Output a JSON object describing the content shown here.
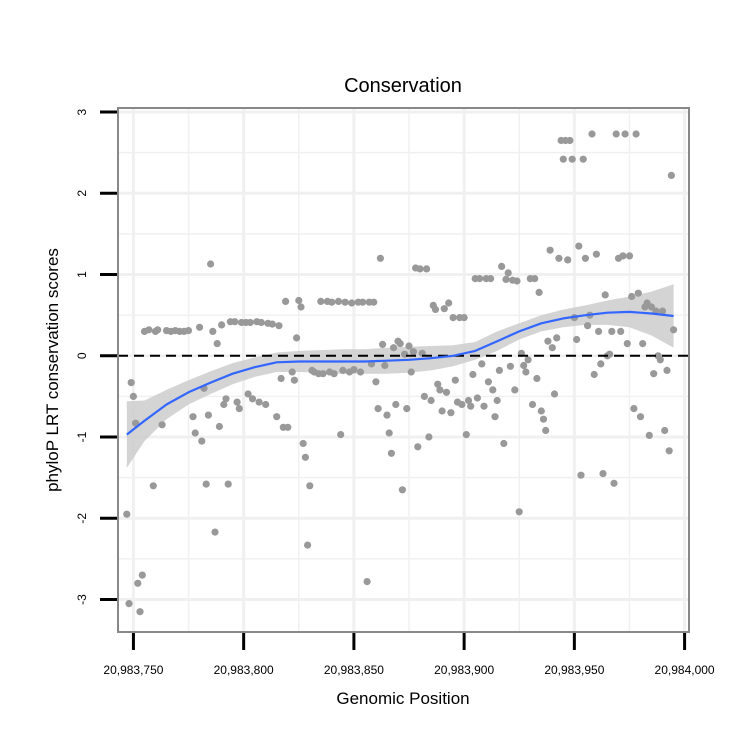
{
  "chart_data": {
    "type": "scatter",
    "title": "Conservation",
    "xlabel": "Genomic Position",
    "ylabel": "phyloP LRT conservation scores",
    "xlim": [
      20983743,
      20984002
    ],
    "ylim": [
      -3.4,
      3.05
    ],
    "xticks": [
      20983750,
      20983800,
      20983850,
      20983900,
      20983950,
      20984000
    ],
    "xtick_labels": [
      "20,983,750",
      "20,983,800",
      "20,983,850",
      "20,983,900",
      "20,983,950",
      "20,984,000"
    ],
    "yticks": [
      -3,
      -2,
      -1,
      0,
      1,
      2,
      3
    ],
    "ytick_labels": [
      "-3",
      "-2",
      "-1",
      "0",
      "1",
      "2",
      "3"
    ],
    "grid": true,
    "reference_line": {
      "y": 0,
      "style": "dashed",
      "color": "#000000"
    },
    "colors": {
      "points": "#999999",
      "smooth": "#3366ff",
      "ribbon": "#cccccc",
      "frame": "#888888",
      "grid": "#f0f0f0"
    },
    "points": [
      [
        20983747,
        -1.95
      ],
      [
        20983748,
        -3.05
      ],
      [
        20983749,
        -0.33
      ],
      [
        20983750,
        -0.5
      ],
      [
        20983751,
        -0.83
      ],
      [
        20983752,
        -2.8
      ],
      [
        20983753,
        -3.15
      ],
      [
        20983754,
        -2.7
      ],
      [
        20983755,
        0.3
      ],
      [
        20983757,
        0.32
      ],
      [
        20983759,
        -1.6
      ],
      [
        20983760,
        0.3
      ],
      [
        20983761,
        0.32
      ],
      [
        20983763,
        -0.85
      ],
      [
        20983765,
        0.31
      ],
      [
        20983767,
        0.3
      ],
      [
        20983769,
        0.31
      ],
      [
        20983771,
        0.3
      ],
      [
        20983773,
        0.3
      ],
      [
        20983775,
        0.31
      ],
      [
        20983777,
        -0.75
      ],
      [
        20983778,
        -0.95
      ],
      [
        20983780,
        0.35
      ],
      [
        20983781,
        -1.05
      ],
      [
        20983782,
        -0.4
      ],
      [
        20983783,
        -1.58
      ],
      [
        20983784,
        -0.73
      ],
      [
        20983785,
        1.13
      ],
      [
        20983786,
        0.3
      ],
      [
        20983787,
        -2.17
      ],
      [
        20983788,
        0.15
      ],
      [
        20983789,
        -0.87
      ],
      [
        20983790,
        0.38
      ],
      [
        20983791,
        -0.6
      ],
      [
        20983792,
        -0.53
      ],
      [
        20983793,
        -1.58
      ],
      [
        20983794,
        0.42
      ],
      [
        20983796,
        0.42
      ],
      [
        20983797,
        -0.57
      ],
      [
        20983798,
        -0.65
      ],
      [
        20983799,
        0.41
      ],
      [
        20983801,
        0.41
      ],
      [
        20983802,
        -0.47
      ],
      [
        20983803,
        0.41
      ],
      [
        20983804,
        -0.53
      ],
      [
        20983806,
        0.42
      ],
      [
        20983807,
        -0.57
      ],
      [
        20983808,
        0.41
      ],
      [
        20983810,
        -0.6
      ],
      [
        20983811,
        0.4
      ],
      [
        20983813,
        0.39
      ],
      [
        20983815,
        -0.75
      ],
      [
        20983816,
        0.37
      ],
      [
        20983817,
        -0.28
      ],
      [
        20983818,
        -0.88
      ],
      [
        20983819,
        0.67
      ],
      [
        20983820,
        -0.88
      ],
      [
        20983822,
        -0.2
      ],
      [
        20983823,
        -0.3
      ],
      [
        20983824,
        0.22
      ],
      [
        20983825,
        0.68
      ],
      [
        20983826,
        0.6
      ],
      [
        20983827,
        -1.08
      ],
      [
        20983828,
        -1.25
      ],
      [
        20983829,
        -2.33
      ],
      [
        20983830,
        -1.6
      ],
      [
        20983831,
        -0.18
      ],
      [
        20983832,
        -0.2
      ],
      [
        20983834,
        -0.22
      ],
      [
        20983835,
        0.67
      ],
      [
        20983836,
        -0.22
      ],
      [
        20983838,
        0.67
      ],
      [
        20983839,
        -0.2
      ],
      [
        20983840,
        0.66
      ],
      [
        20983841,
        -0.22
      ],
      [
        20983843,
        0.67
      ],
      [
        20983844,
        -0.97
      ],
      [
        20983845,
        -0.18
      ],
      [
        20983846,
        0.66
      ],
      [
        20983848,
        -0.2
      ],
      [
        20983849,
        0.65
      ],
      [
        20983850,
        -0.17
      ],
      [
        20983852,
        0.66
      ],
      [
        20983853,
        -0.2
      ],
      [
        20983854,
        0.66
      ],
      [
        20983856,
        -2.78
      ],
      [
        20983857,
        0.66
      ],
      [
        20983858,
        -0.1
      ],
      [
        20983859,
        0.66
      ],
      [
        20983860,
        -0.32
      ],
      [
        20983861,
        -0.65
      ],
      [
        20983862,
        1.2
      ],
      [
        20983863,
        0.14
      ],
      [
        20983864,
        -0.12
      ],
      [
        20983865,
        -0.73
      ],
      [
        20983866,
        -0.95
      ],
      [
        20983867,
        -1.2
      ],
      [
        20983868,
        0.1
      ],
      [
        20983869,
        -0.6
      ],
      [
        20983870,
        0.18
      ],
      [
        20983871,
        0.15
      ],
      [
        20983872,
        -1.65
      ],
      [
        20983873,
        0.02
      ],
      [
        20983874,
        -0.65
      ],
      [
        20983875,
        0.12
      ],
      [
        20983876,
        -0.2
      ],
      [
        20983877,
        0.05
      ],
      [
        20983878,
        1.08
      ],
      [
        20983879,
        -1.12
      ],
      [
        20983880,
        1.07
      ],
      [
        20983881,
        0.03
      ],
      [
        20983882,
        -0.5
      ],
      [
        20983883,
        1.07
      ],
      [
        20983884,
        -1.0
      ],
      [
        20983885,
        -0.55
      ],
      [
        20983886,
        0.62
      ],
      [
        20983887,
        0.57
      ],
      [
        20983888,
        -0.35
      ],
      [
        20983889,
        -0.42
      ],
      [
        20983890,
        -0.68
      ],
      [
        20983891,
        0.58
      ],
      [
        20983892,
        -0.45
      ],
      [
        20983893,
        0.65
      ],
      [
        20983894,
        -0.7
      ],
      [
        20983895,
        0.47
      ],
      [
        20983896,
        -0.3
      ],
      [
        20983897,
        -0.57
      ],
      [
        20983898,
        0.47
      ],
      [
        20983899,
        -0.6
      ],
      [
        20983900,
        0.47
      ],
      [
        20983901,
        -0.97
      ],
      [
        20983902,
        -0.55
      ],
      [
        20983903,
        -0.62
      ],
      [
        20983904,
        -0.23
      ],
      [
        20983905,
        0.95
      ],
      [
        20983906,
        -0.52
      ],
      [
        20983907,
        0.95
      ],
      [
        20983908,
        -0.1
      ],
      [
        20983909,
        -0.62
      ],
      [
        20983910,
        0.95
      ],
      [
        20983911,
        -0.32
      ],
      [
        20983912,
        0.95
      ],
      [
        20983913,
        -0.42
      ],
      [
        20983914,
        -0.75
      ],
      [
        20983915,
        -0.55
      ],
      [
        20983916,
        -0.18
      ],
      [
        20983917,
        1.1
      ],
      [
        20983918,
        -1.08
      ],
      [
        20983919,
        0.94
      ],
      [
        20983920,
        1.02
      ],
      [
        20983921,
        -0.13
      ],
      [
        20983922,
        0.93
      ],
      [
        20983923,
        -0.42
      ],
      [
        20983924,
        0.92
      ],
      [
        20983925,
        -1.92
      ],
      [
        20983926,
        0.03
      ],
      [
        20983927,
        -0.12
      ],
      [
        20983928,
        -0.2
      ],
      [
        20983929,
        -0.05
      ],
      [
        20983930,
        0.95
      ],
      [
        20983931,
        -0.6
      ],
      [
        20983932,
        0.95
      ],
      [
        20983933,
        -0.28
      ],
      [
        20983934,
        0.78
      ],
      [
        20983935,
        -0.68
      ],
      [
        20983936,
        -0.78
      ],
      [
        20983937,
        -0.92
      ],
      [
        20983938,
        0.18
      ],
      [
        20983939,
        1.3
      ],
      [
        20983940,
        0.1
      ],
      [
        20983941,
        -0.47
      ],
      [
        20983942,
        0.22
      ],
      [
        20983943,
        1.2
      ],
      [
        20983944,
        2.65
      ],
      [
        20983945,
        2.42
      ],
      [
        20983946,
        2.65
      ],
      [
        20983947,
        1.18
      ],
      [
        20983948,
        2.65
      ],
      [
        20983949,
        2.42
      ],
      [
        20983950,
        0.47
      ],
      [
        20983951,
        0.2
      ],
      [
        20983952,
        1.35
      ],
      [
        20983953,
        -1.47
      ],
      [
        20983954,
        2.42
      ],
      [
        20983955,
        1.2
      ],
      [
        20983956,
        0.37
      ],
      [
        20983957,
        0.5
      ],
      [
        20983958,
        2.73
      ],
      [
        20983959,
        -0.23
      ],
      [
        20983960,
        1.25
      ],
      [
        20983961,
        0.3
      ],
      [
        20983962,
        -0.1
      ],
      [
        20983963,
        -1.45
      ],
      [
        20983964,
        0.75
      ],
      [
        20983965,
        0.0
      ],
      [
        20983966,
        0.02
      ],
      [
        20983967,
        0.3
      ],
      [
        20983968,
        -1.57
      ],
      [
        20983969,
        2.73
      ],
      [
        20983970,
        1.2
      ],
      [
        20983971,
        0.3
      ],
      [
        20983972,
        1.23
      ],
      [
        20983973,
        2.73
      ],
      [
        20983974,
        0.15
      ],
      [
        20983975,
        1.23
      ],
      [
        20983976,
        0.73
      ],
      [
        20983977,
        -0.65
      ],
      [
        20983978,
        2.73
      ],
      [
        20983979,
        0.77
      ],
      [
        20983980,
        -0.75
      ],
      [
        20983981,
        0.15
      ],
      [
        20983982,
        0.6
      ],
      [
        20983983,
        0.65
      ],
      [
        20983984,
        -0.98
      ],
      [
        20983985,
        0.6
      ],
      [
        20983986,
        -0.22
      ],
      [
        20983987,
        0.55
      ],
      [
        20983988,
        0.0
      ],
      [
        20983989,
        -0.05
      ],
      [
        20983990,
        0.55
      ],
      [
        20983991,
        -0.92
      ],
      [
        20983992,
        -0.18
      ],
      [
        20983993,
        -1.17
      ],
      [
        20983994,
        2.22
      ],
      [
        20983995,
        0.32
      ]
    ],
    "smooth": {
      "x": [
        20983747,
        20983755,
        20983765,
        20983775,
        20983785,
        20983795,
        20983805,
        20983815,
        20983825,
        20983835,
        20983845,
        20983855,
        20983865,
        20983875,
        20983885,
        20983895,
        20983905,
        20983915,
        20983925,
        20983935,
        20983945,
        20983955,
        20983965,
        20983975,
        20983985,
        20983995
      ],
      "y": [
        -0.97,
        -0.8,
        -0.6,
        -0.45,
        -0.33,
        -0.22,
        -0.14,
        -0.08,
        -0.07,
        -0.07,
        -0.07,
        -0.07,
        -0.06,
        -0.05,
        -0.03,
        0.0,
        0.06,
        0.18,
        0.3,
        0.4,
        0.46,
        0.5,
        0.53,
        0.54,
        0.52,
        0.49
      ],
      "lower": [
        -1.38,
        -1.05,
        -0.78,
        -0.6,
        -0.47,
        -0.35,
        -0.26,
        -0.2,
        -0.2,
        -0.21,
        -0.22,
        -0.22,
        -0.22,
        -0.21,
        -0.18,
        -0.13,
        -0.05,
        0.06,
        0.2,
        0.3,
        0.35,
        0.38,
        0.38,
        0.35,
        0.25,
        0.1
      ],
      "upper": [
        -0.56,
        -0.55,
        -0.42,
        -0.3,
        -0.19,
        -0.09,
        -0.02,
        0.04,
        0.06,
        0.07,
        0.08,
        0.08,
        0.1,
        0.11,
        0.12,
        0.13,
        0.17,
        0.3,
        0.4,
        0.5,
        0.57,
        0.62,
        0.68,
        0.73,
        0.79,
        0.88
      ]
    }
  }
}
